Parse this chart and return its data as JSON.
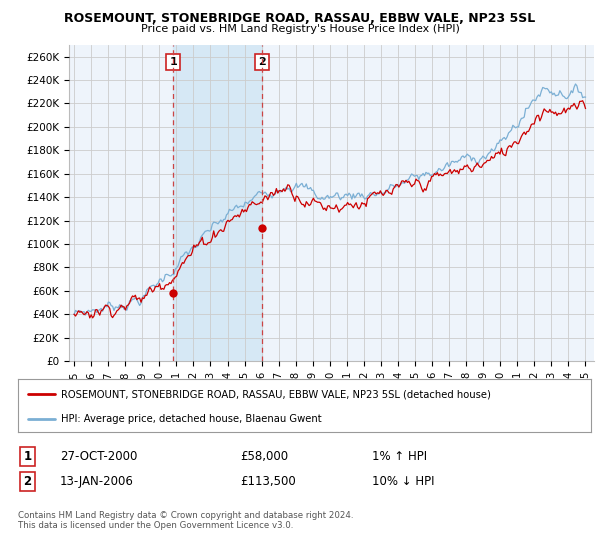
{
  "title": "ROSEMOUNT, STONEBRIDGE ROAD, RASSAU, EBBW VALE, NP23 5SL",
  "subtitle": "Price paid vs. HM Land Registry's House Price Index (HPI)",
  "ylabel_ticks": [
    "£0",
    "£20K",
    "£40K",
    "£60K",
    "£80K",
    "£100K",
    "£120K",
    "£140K",
    "£160K",
    "£180K",
    "£200K",
    "£220K",
    "£240K",
    "£260K"
  ],
  "ytick_values": [
    0,
    20000,
    40000,
    60000,
    80000,
    100000,
    120000,
    140000,
    160000,
    180000,
    200000,
    220000,
    240000,
    260000
  ],
  "ylim": [
    0,
    270000
  ],
  "xlim_start": 1994.7,
  "xlim_end": 2025.5,
  "sale1_x": 2000.82,
  "sale1_y": 58000,
  "sale2_x": 2006.04,
  "sale2_y": 113500,
  "sale1_label": "1",
  "sale2_label": "2",
  "vline1_x": 2000.82,
  "vline2_x": 2006.04,
  "legend_line1": "ROSEMOUNT, STONEBRIDGE ROAD, RASSAU, EBBW VALE, NP23 5SL (detached house)",
  "legend_line2": "HPI: Average price, detached house, Blaenau Gwent",
  "table_row1_num": "1",
  "table_row1_date": "27-OCT-2000",
  "table_row1_price": "£58,000",
  "table_row1_hpi": "1% ↑ HPI",
  "table_row2_num": "2",
  "table_row2_date": "13-JAN-2006",
  "table_row2_price": "£113,500",
  "table_row2_hpi": "10% ↓ HPI",
  "footer": "Contains HM Land Registry data © Crown copyright and database right 2024.\nThis data is licensed under the Open Government Licence v3.0.",
  "line_color_red": "#cc0000",
  "line_color_blue": "#7bafd4",
  "vline_color": "#cc4444",
  "grid_color": "#cccccc",
  "bg_color": "#ffffff",
  "plot_bg_color": "#eef4fb",
  "shade_color": "#d6e8f5",
  "xtick_years": [
    1995,
    1996,
    1997,
    1998,
    1999,
    2000,
    2001,
    2002,
    2003,
    2004,
    2005,
    2006,
    2007,
    2008,
    2009,
    2010,
    2011,
    2012,
    2013,
    2014,
    2015,
    2016,
    2017,
    2018,
    2019,
    2020,
    2021,
    2022,
    2023,
    2024,
    2025
  ]
}
